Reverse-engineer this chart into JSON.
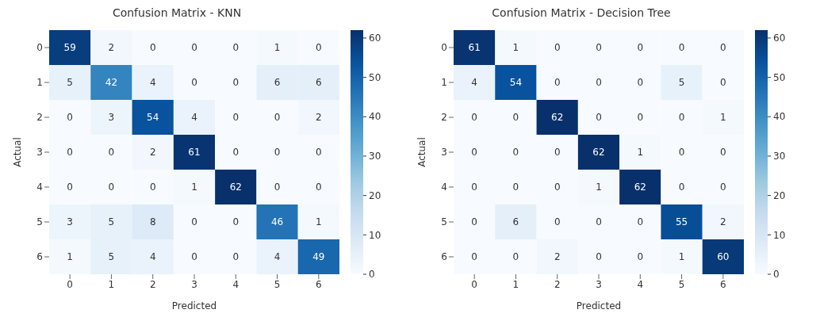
{
  "chart_data": [
    {
      "type": "heatmap",
      "title": "Confusion Matrix - KNN",
      "xlabel": "Predicted",
      "ylabel": "Actual",
      "categories": [
        "0",
        "1",
        "2",
        "3",
        "4",
        "5",
        "6"
      ],
      "y_categories": [
        "0",
        "1",
        "2",
        "3",
        "4",
        "5",
        "6"
      ],
      "cells": [
        [
          59,
          2,
          0,
          0,
          0,
          1,
          0
        ],
        [
          5,
          42,
          4,
          0,
          0,
          6,
          6
        ],
        [
          0,
          3,
          54,
          4,
          0,
          0,
          2
        ],
        [
          0,
          0,
          2,
          61,
          0,
          0,
          0
        ],
        [
          0,
          0,
          0,
          1,
          62,
          0,
          0
        ],
        [
          3,
          5,
          8,
          0,
          0,
          46,
          1
        ],
        [
          1,
          5,
          4,
          0,
          0,
          4,
          49
        ]
      ],
      "clim": [
        0,
        62
      ],
      "cticks": [
        0,
        10,
        20,
        30,
        40,
        50,
        60
      ],
      "data_labels": true
    },
    {
      "type": "heatmap",
      "title": "Confusion Matrix - Decision Tree",
      "xlabel": "Predicted",
      "ylabel": "Actual",
      "categories": [
        "0",
        "1",
        "2",
        "3",
        "4",
        "5",
        "6"
      ],
      "y_categories": [
        "0",
        "1",
        "2",
        "3",
        "4",
        "5",
        "6"
      ],
      "cells": [
        [
          61,
          1,
          0,
          0,
          0,
          0,
          0
        ],
        [
          4,
          54,
          0,
          0,
          0,
          5,
          0
        ],
        [
          0,
          0,
          62,
          0,
          0,
          0,
          1
        ],
        [
          0,
          0,
          0,
          62,
          1,
          0,
          0
        ],
        [
          0,
          0,
          0,
          1,
          62,
          0,
          0
        ],
        [
          0,
          6,
          0,
          0,
          0,
          55,
          2
        ],
        [
          0,
          0,
          2,
          0,
          0,
          1,
          60
        ]
      ],
      "clim": [
        0,
        62
      ],
      "cticks": [
        0,
        10,
        20,
        30,
        40,
        50,
        60
      ],
      "data_labels": true
    }
  ]
}
